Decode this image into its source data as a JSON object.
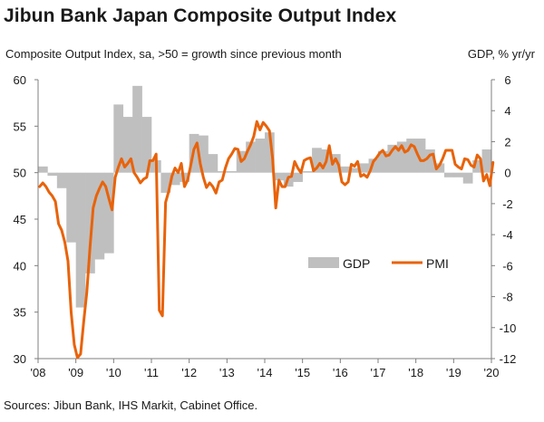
{
  "header": {
    "title": "Jibun Bank Japan Composite Output Index",
    "subtitle_left": "Composite Output Index, sa, >50 = growth since previous month",
    "subtitle_right": "GDP, % yr/yr",
    "source": "Sources: Jibun Bank, IHS Markit, Cabinet Office."
  },
  "colors": {
    "gdp": "#bfbfbf",
    "pmi": "#e8630a",
    "axis": "#7f7f7f",
    "text": "#1a1a1a"
  },
  "chart_data": {
    "type": "bar+line",
    "x_tick_labels": [
      "'08",
      "'09",
      "'10",
      "'11",
      "'12",
      "'13",
      "'14",
      "'15",
      "'16",
      "'17",
      "'18",
      "'19",
      "'20"
    ],
    "left_axis": {
      "label": "Composite Output Index",
      "ticks": [
        30,
        35,
        40,
        45,
        50,
        55,
        60
      ],
      "range": [
        30,
        60
      ]
    },
    "right_axis": {
      "label": "GDP, % yr/yr",
      "ticks": [
        -12,
        -10,
        -8,
        -6,
        -4,
        -2,
        0,
        2,
        4,
        6
      ],
      "range": [
        -12,
        6
      ]
    },
    "legend": {
      "position": "center-right",
      "entries": [
        "GDP",
        "PMI"
      ]
    },
    "series": [
      {
        "name": "GDP",
        "kind": "bar",
        "axis": "right",
        "quarters": [
          "2008Q1",
          "2008Q2",
          "2008Q3",
          "2008Q4",
          "2009Q1",
          "2009Q2",
          "2009Q3",
          "2009Q4",
          "2010Q1",
          "2010Q2",
          "2010Q3",
          "2010Q4",
          "2011Q1",
          "2011Q2",
          "2011Q3",
          "2011Q4",
          "2012Q1",
          "2012Q2",
          "2012Q3",
          "2012Q4",
          "2013Q1",
          "2013Q2",
          "2013Q3",
          "2013Q4",
          "2014Q1",
          "2014Q2",
          "2014Q3",
          "2014Q4",
          "2015Q1",
          "2015Q2",
          "2015Q3",
          "2015Q4",
          "2016Q1",
          "2016Q2",
          "2016Q3",
          "2016Q4",
          "2017Q1",
          "2017Q2",
          "2017Q3",
          "2017Q4",
          "2018Q1",
          "2018Q2",
          "2018Q3",
          "2018Q4",
          "2019Q1",
          "2019Q2",
          "2019Q3",
          "2019Q4"
        ],
        "values": [
          0.4,
          -0.2,
          -1.0,
          -4.5,
          -8.7,
          -6.5,
          -5.6,
          -5.2,
          4.4,
          3.6,
          5.6,
          3.6,
          0.8,
          -1.3,
          -0.8,
          -0.6,
          2.5,
          2.4,
          1.2,
          0.1,
          0.1,
          1.4,
          2.0,
          2.2,
          2.6,
          -0.5,
          -0.9,
          -0.6,
          0.1,
          1.6,
          1.5,
          1.2,
          0.4,
          0.3,
          0.6,
          0.9,
          1.4,
          1.8,
          2.0,
          2.2,
          2.2,
          1.5,
          0.6,
          -0.3,
          -0.3,
          -0.7,
          0.8,
          1.5
        ]
      },
      {
        "name": "PMI",
        "kind": "line",
        "axis": "left",
        "start": "2008-01",
        "frequency": "monthly",
        "values": [
          48.5,
          48.9,
          48.5,
          47.9,
          47.5,
          46.9,
          44.5,
          43.8,
          42.5,
          40.5,
          35.0,
          31.5,
          30.1,
          30.5,
          34.0,
          37.2,
          42.0,
          46.2,
          47.5,
          48.3,
          49.0,
          48.5,
          47.2,
          46.0,
          49.5,
          50.6,
          51.5,
          50.6,
          51.0,
          51.5,
          50.0,
          49.5,
          48.9,
          49.3,
          49.5,
          51.3,
          51.3,
          52.0,
          35.2,
          34.6,
          46.8,
          48.0,
          49.6,
          50.5,
          50.0,
          51.0,
          48.5,
          49.2,
          50.8,
          52.5,
          53.2,
          51.0,
          49.5,
          48.4,
          48.9,
          48.5,
          47.8,
          49.0,
          49.2,
          50.5,
          51.5,
          52.0,
          52.6,
          52.5,
          51.2,
          51.5,
          52.3,
          53.0,
          53.9,
          55.5,
          54.6,
          55.4,
          55.0,
          54.5,
          51.5,
          46.2,
          49.2,
          48.5,
          48.5,
          49.5,
          49.6,
          51.2,
          50.5,
          50.0,
          51.3,
          51.5,
          51.6,
          50.2,
          50.5,
          51.0,
          50.5,
          51.2,
          52.9,
          50.9,
          51.5,
          50.8,
          49.0,
          48.7,
          49.0,
          50.9,
          50.7,
          51.2,
          49.6,
          49.8,
          49.5,
          50.2,
          51.2,
          51.6,
          52.1,
          52.4,
          51.8,
          51.9,
          52.4,
          52.8,
          52.4,
          52.9,
          52.2,
          52.4,
          53.0,
          52.8,
          52.0,
          51.3,
          51.3,
          51.5,
          51.9,
          52.0,
          50.4,
          50.8,
          51.5,
          52.4,
          52.4,
          52.4,
          50.9,
          50.6,
          50.4,
          51.5,
          51.4,
          50.8,
          50.6,
          51.9,
          51.5,
          49.1,
          49.8,
          48.6,
          51.1
        ]
      }
    ]
  }
}
